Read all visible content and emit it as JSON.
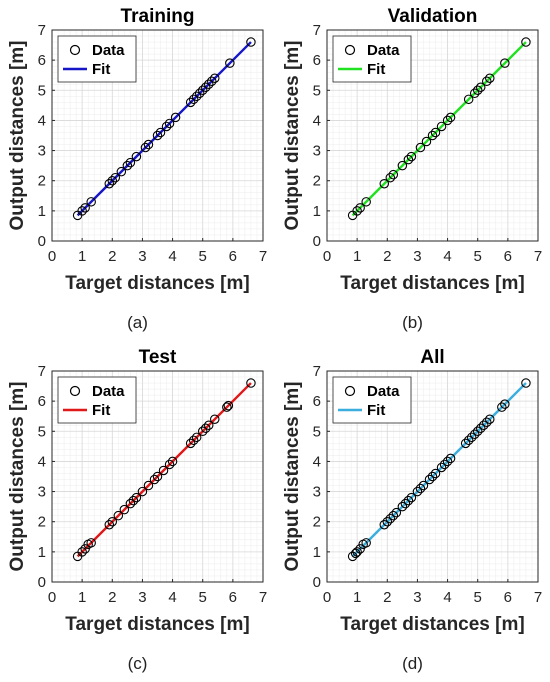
{
  "chart_data": [
    {
      "type": "scatter",
      "title": "Training",
      "xlabel": "Target distances [m]",
      "ylabel": "Output distances [m]",
      "caption": "(a)",
      "xlim": [
        0,
        7
      ],
      "ylim": [
        0,
        7
      ],
      "xticks": [
        "0",
        "1",
        "2",
        "3",
        "4",
        "5",
        "6",
        "7"
      ],
      "yticks": [
        "0",
        "1",
        "2",
        "3",
        "4",
        "5",
        "6",
        "7"
      ],
      "grid": true,
      "legend_position": "top-left",
      "fit_color": "#1616c8",
      "series": [
        {
          "name": "Data",
          "marker": "circle",
          "x": [
            0.85,
            1.0,
            1.1,
            1.3,
            1.9,
            2.0,
            2.1,
            2.3,
            2.5,
            2.6,
            2.8,
            3.1,
            3.2,
            3.5,
            3.6,
            3.8,
            3.9,
            4.1,
            4.6,
            4.7,
            4.8,
            4.9,
            5.0,
            5.1,
            5.2,
            5.3,
            5.4,
            5.9,
            6.6
          ],
          "y": [
            0.85,
            1.0,
            1.1,
            1.3,
            1.9,
            2.0,
            2.1,
            2.3,
            2.5,
            2.6,
            2.8,
            3.1,
            3.2,
            3.5,
            3.6,
            3.8,
            3.9,
            4.1,
            4.6,
            4.7,
            4.8,
            4.9,
            5.0,
            5.1,
            5.2,
            5.3,
            5.4,
            5.9,
            6.6
          ]
        },
        {
          "name": "Fit",
          "line": true,
          "x": [
            0.85,
            6.6
          ],
          "y": [
            0.85,
            6.6
          ]
        }
      ]
    },
    {
      "type": "scatter",
      "title": "Validation",
      "xlabel": "Target distances [m]",
      "ylabel": "Output distances [m]",
      "caption": "(b)",
      "xlim": [
        0,
        7
      ],
      "ylim": [
        0,
        7
      ],
      "xticks": [
        "0",
        "1",
        "2",
        "3",
        "4",
        "5",
        "6",
        "7"
      ],
      "yticks": [
        "0",
        "1",
        "2",
        "3",
        "4",
        "5",
        "6",
        "7"
      ],
      "grid": true,
      "legend_position": "top-left",
      "fit_color": "#22e022",
      "series": [
        {
          "name": "Data",
          "marker": "circle",
          "x": [
            0.85,
            1.0,
            1.1,
            1.3,
            1.9,
            2.1,
            2.2,
            2.5,
            2.7,
            2.8,
            3.1,
            3.3,
            3.5,
            3.6,
            3.8,
            4.0,
            4.1,
            4.7,
            4.9,
            5.0,
            5.1,
            5.3,
            5.4,
            5.9,
            6.6
          ],
          "y": [
            0.85,
            1.0,
            1.1,
            1.3,
            1.9,
            2.1,
            2.2,
            2.5,
            2.7,
            2.8,
            3.1,
            3.3,
            3.5,
            3.6,
            3.8,
            4.0,
            4.1,
            4.7,
            4.9,
            5.0,
            5.1,
            5.3,
            5.4,
            5.9,
            6.6
          ]
        },
        {
          "name": "Fit",
          "line": true,
          "x": [
            0.85,
            6.6
          ],
          "y": [
            0.85,
            6.6
          ]
        }
      ]
    },
    {
      "type": "scatter",
      "title": "Test",
      "xlabel": "Target distances [m]",
      "ylabel": "Output distances [m]",
      "caption": "(c)",
      "xlim": [
        0,
        7
      ],
      "ylim": [
        0,
        7
      ],
      "xticks": [
        "0",
        "1",
        "2",
        "3",
        "4",
        "5",
        "6",
        "7"
      ],
      "yticks": [
        "0",
        "1",
        "2",
        "3",
        "4",
        "5",
        "6",
        "7"
      ],
      "grid": true,
      "legend_position": "top-left",
      "fit_color": "#e01818",
      "series": [
        {
          "name": "Data",
          "marker": "circle",
          "x": [
            0.85,
            1.0,
            1.1,
            1.2,
            1.3,
            1.9,
            2.0,
            2.2,
            2.4,
            2.6,
            2.7,
            2.8,
            3.0,
            3.2,
            3.4,
            3.5,
            3.7,
            3.9,
            4.0,
            4.6,
            4.7,
            4.8,
            5.0,
            5.1,
            5.2,
            5.4,
            5.8,
            5.85,
            6.6
          ],
          "y": [
            0.85,
            1.0,
            1.1,
            1.25,
            1.3,
            1.9,
            2.0,
            2.2,
            2.4,
            2.6,
            2.7,
            2.8,
            3.0,
            3.2,
            3.4,
            3.5,
            3.7,
            3.9,
            4.0,
            4.6,
            4.7,
            4.8,
            5.0,
            5.1,
            5.2,
            5.4,
            5.8,
            5.85,
            6.6
          ]
        },
        {
          "name": "Fit",
          "line": true,
          "x": [
            0.85,
            6.6
          ],
          "y": [
            0.85,
            6.6
          ]
        }
      ]
    },
    {
      "type": "scatter",
      "title": "All",
      "xlabel": "Target distances [m]",
      "ylabel": "Output distances [m]",
      "caption": "(d)",
      "xlim": [
        0,
        7
      ],
      "ylim": [
        0,
        7
      ],
      "xticks": [
        "0",
        "1",
        "2",
        "3",
        "4",
        "5",
        "6",
        "7"
      ],
      "yticks": [
        "0",
        "1",
        "2",
        "3",
        "4",
        "5",
        "6",
        "7"
      ],
      "grid": true,
      "legend_position": "top-left",
      "fit_color": "#3aaedc",
      "series": [
        {
          "name": "Data",
          "marker": "circle",
          "x": [
            0.85,
            0.95,
            1.0,
            1.1,
            1.2,
            1.3,
            1.9,
            2.0,
            2.1,
            2.2,
            2.3,
            2.5,
            2.6,
            2.7,
            2.8,
            3.0,
            3.1,
            3.2,
            3.4,
            3.5,
            3.6,
            3.8,
            3.9,
            4.0,
            4.1,
            4.6,
            4.7,
            4.8,
            4.9,
            5.0,
            5.1,
            5.2,
            5.3,
            5.4,
            5.8,
            5.9,
            6.6
          ],
          "y": [
            0.85,
            0.95,
            1.0,
            1.1,
            1.25,
            1.3,
            1.9,
            2.0,
            2.1,
            2.2,
            2.3,
            2.5,
            2.6,
            2.7,
            2.8,
            3.0,
            3.1,
            3.2,
            3.4,
            3.5,
            3.6,
            3.8,
            3.9,
            4.0,
            4.1,
            4.6,
            4.7,
            4.8,
            4.9,
            5.0,
            5.1,
            5.2,
            5.3,
            5.4,
            5.8,
            5.9,
            6.6
          ]
        },
        {
          "name": "Fit",
          "line": true,
          "x": [
            0.85,
            6.6
          ],
          "y": [
            0.85,
            6.6
          ]
        }
      ]
    }
  ]
}
